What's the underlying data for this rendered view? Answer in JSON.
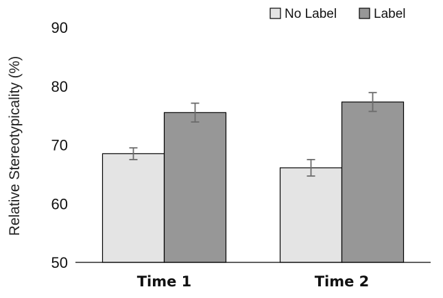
{
  "chart_data": {
    "type": "bar",
    "categories": [
      "Time 1",
      "Time 2"
    ],
    "series": [
      {
        "name": "No Label",
        "values": [
          68.5,
          66.1
        ],
        "errors": [
          1.0,
          1.4
        ],
        "color": "#e4e4e4"
      },
      {
        "name": "Label",
        "values": [
          75.5,
          77.3
        ],
        "errors": [
          1.6,
          1.6
        ],
        "color": "#979797"
      }
    ],
    "title": "",
    "xlabel": "",
    "ylabel": "Relative Stereotypicality (%)",
    "ylim": [
      50,
      90
    ],
    "yticks": [
      50,
      60,
      70,
      80,
      90
    ],
    "grid": false,
    "legend_position": "top-right"
  }
}
